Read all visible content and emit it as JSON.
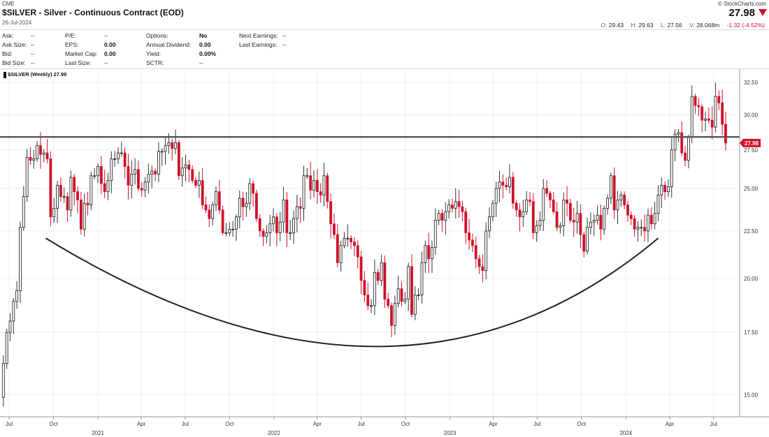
{
  "header": {
    "exchange": "CME",
    "copyright": "© StockCharts.com",
    "title": "$SILVER - Silver - Continuous Contract (EOD)",
    "date": "26-Jul-2024",
    "price": "27.98",
    "open_label": "O:",
    "open": "29.43",
    "high_label": "H:",
    "high": "29.63",
    "low_label": "L:",
    "low": "27.56",
    "volume_label": "V:",
    "volume": "28.068m",
    "change": "-1.32 (-4.52%)"
  },
  "quote": {
    "ask_label": "Ask:",
    "ask": "--",
    "ask_size_label": "Ask Size:",
    "ask_size": "--",
    "bid_label": "Bid:",
    "bid": "--",
    "bid_size_label": "Bid Size:",
    "bid_size": "--",
    "pe_label": "P/E:",
    "pe": "--",
    "eps_label": "EPS:",
    "eps": "0.00",
    "market_cap_label": "Market Cap:",
    "market_cap": "0.00",
    "last_size_label": "Last Size:",
    "last_size": "--",
    "options_label": "Options:",
    "options": "No",
    "annual_dividend_label": "Annual Dividend:",
    "annual_dividend": "0.00",
    "yield_label": "Yield:",
    "yield": "0.00%",
    "sctr_label": "SCTR:",
    "sctr": "--",
    "next_earnings_label": "Next Earnings:",
    "next_earnings": "--",
    "last_earnings_label": "Last Earnings:",
    "last_earnings": "--"
  },
  "colors": {
    "up": "#ffffff",
    "up_border": "#111111",
    "down": "#d0112b",
    "wick": "#444444",
    "resistance": "#555555",
    "arc": "#222222",
    "price_tag": "#d0112b",
    "grid": "#eeeeee"
  },
  "chart_data": {
    "type": "candlestick",
    "legend": "$SILVER (Weekly) 27.98",
    "last_price": "27.98",
    "y_scale": "log",
    "ylim": [
      14.2,
      33.6
    ],
    "yticks": [
      15.0,
      17.5,
      20.0,
      22.5,
      25.0,
      27.5,
      30.0,
      32.5
    ],
    "ytick_labels": [
      "15.00",
      "17.50",
      "20.00",
      "22.50",
      "25.00",
      "27.50",
      "30.00",
      "32.50"
    ],
    "xlim": [
      "2020-06-12",
      "2024-08-24"
    ],
    "xticks": [
      {
        "date": "2020-07-01",
        "label": "Jul",
        "year": ""
      },
      {
        "date": "2020-10-01",
        "label": "Oct",
        "year": ""
      },
      {
        "date": "2021-01-01",
        "label": "",
        "year": "2021"
      },
      {
        "date": "2021-04-01",
        "label": "Apr",
        "year": ""
      },
      {
        "date": "2021-07-01",
        "label": "Jul",
        "year": ""
      },
      {
        "date": "2021-10-01",
        "label": "Oct",
        "year": ""
      },
      {
        "date": "2022-01-01",
        "label": "",
        "year": "2022"
      },
      {
        "date": "2022-04-01",
        "label": "Apr",
        "year": ""
      },
      {
        "date": "2022-07-01",
        "label": "Jul",
        "year": ""
      },
      {
        "date": "2022-10-01",
        "label": "Oct",
        "year": ""
      },
      {
        "date": "2023-01-01",
        "label": "",
        "year": "2023"
      },
      {
        "date": "2023-04-01",
        "label": "Apr",
        "year": ""
      },
      {
        "date": "2023-07-01",
        "label": "Jul",
        "year": ""
      },
      {
        "date": "2023-10-01",
        "label": "Oct",
        "year": ""
      },
      {
        "date": "2024-01-01",
        "label": "",
        "year": "2024"
      },
      {
        "date": "2024-04-01",
        "label": "Apr",
        "year": ""
      },
      {
        "date": "2024-07-01",
        "label": "Jul",
        "year": ""
      }
    ],
    "resistance_level": 28.4,
    "cup_arc": {
      "start": [
        "2020-09-15",
        22.1
      ],
      "bottom": [
        "2022-08-01",
        16.9
      ],
      "end": [
        "2024-03-08",
        22.1
      ]
    },
    "weekly_close_path": [
      [
        "2020-06-12",
        14.9
      ],
      [
        "2020-06-19",
        16.2
      ],
      [
        "2020-06-26",
        17.5
      ],
      [
        "2020-07-03",
        18.0
      ],
      [
        "2020-07-10",
        18.9
      ],
      [
        "2020-07-17",
        19.4
      ],
      [
        "2020-07-24",
        22.7
      ],
      [
        "2020-07-31",
        24.5
      ],
      [
        "2020-08-07",
        27.0
      ],
      [
        "2020-08-14",
        26.8
      ],
      [
        "2020-08-21",
        26.9
      ],
      [
        "2020-08-28",
        27.8
      ],
      [
        "2020-09-04",
        27.2
      ],
      [
        "2020-09-11",
        27.3
      ],
      [
        "2020-09-18",
        26.9
      ],
      [
        "2020-09-25",
        23.3
      ],
      [
        "2020-10-02",
        23.8
      ],
      [
        "2020-10-09",
        25.2
      ],
      [
        "2020-10-16",
        24.5
      ],
      [
        "2020-10-23",
        24.5
      ],
      [
        "2020-10-30",
        23.7
      ],
      [
        "2020-11-06",
        25.7
      ],
      [
        "2020-11-13",
        24.8
      ],
      [
        "2020-11-20",
        24.3
      ],
      [
        "2020-11-27",
        22.6
      ],
      [
        "2020-12-04",
        24.1
      ],
      [
        "2020-12-11",
        24.0
      ],
      [
        "2020-12-18",
        25.8
      ],
      [
        "2020-12-25",
        25.8
      ],
      [
        "2021-01-01",
        26.4
      ],
      [
        "2021-01-08",
        25.3
      ],
      [
        "2021-01-15",
        24.8
      ],
      [
        "2021-01-22",
        25.5
      ],
      [
        "2021-01-29",
        26.9
      ],
      [
        "2021-02-05",
        26.9
      ],
      [
        "2021-02-12",
        27.3
      ],
      [
        "2021-02-19",
        27.3
      ],
      [
        "2021-02-26",
        26.4
      ],
      [
        "2021-03-05",
        25.2
      ],
      [
        "2021-03-12",
        25.9
      ],
      [
        "2021-03-19",
        26.2
      ],
      [
        "2021-03-26",
        25.0
      ],
      [
        "2021-04-02",
        24.9
      ],
      [
        "2021-04-09",
        25.4
      ],
      [
        "2021-04-16",
        25.9
      ],
      [
        "2021-04-23",
        26.1
      ],
      [
        "2021-04-30",
        25.9
      ],
      [
        "2021-05-07",
        27.4
      ],
      [
        "2021-05-14",
        27.4
      ],
      [
        "2021-05-21",
        27.8
      ],
      [
        "2021-05-28",
        28.0
      ],
      [
        "2021-06-04",
        27.6
      ],
      [
        "2021-06-11",
        28.0
      ],
      [
        "2021-06-18",
        25.8
      ],
      [
        "2021-06-25",
        26.3
      ],
      [
        "2021-07-02",
        26.5
      ],
      [
        "2021-07-09",
        26.2
      ],
      [
        "2021-07-16",
        25.5
      ],
      [
        "2021-07-23",
        25.2
      ],
      [
        "2021-07-30",
        25.5
      ],
      [
        "2021-08-06",
        24.0
      ],
      [
        "2021-08-13",
        23.7
      ],
      [
        "2021-08-20",
        23.2
      ],
      [
        "2021-08-27",
        24.0
      ],
      [
        "2021-09-03",
        24.8
      ],
      [
        "2021-09-10",
        23.7
      ],
      [
        "2021-09-17",
        22.4
      ],
      [
        "2021-09-24",
        22.4
      ],
      [
        "2021-10-01",
        22.6
      ],
      [
        "2021-10-08",
        22.6
      ],
      [
        "2021-10-15",
        23.3
      ],
      [
        "2021-10-22",
        24.4
      ],
      [
        "2021-10-29",
        23.9
      ],
      [
        "2021-11-05",
        24.1
      ],
      [
        "2021-11-12",
        25.3
      ],
      [
        "2021-11-19",
        24.7
      ],
      [
        "2021-11-26",
        23.2
      ],
      [
        "2021-12-03",
        22.5
      ],
      [
        "2021-12-10",
        22.2
      ],
      [
        "2021-12-17",
        22.4
      ],
      [
        "2021-12-24",
        22.9
      ],
      [
        "2021-12-31",
        23.3
      ],
      [
        "2022-01-07",
        22.4
      ],
      [
        "2022-01-14",
        23.0
      ],
      [
        "2022-01-21",
        24.3
      ],
      [
        "2022-01-28",
        22.4
      ],
      [
        "2022-02-04",
        22.4
      ],
      [
        "2022-02-11",
        23.2
      ],
      [
        "2022-02-18",
        23.9
      ],
      [
        "2022-02-25",
        23.8
      ],
      [
        "2022-03-04",
        25.8
      ],
      [
        "2022-03-11",
        25.8
      ],
      [
        "2022-03-18",
        24.9
      ],
      [
        "2022-03-25",
        25.5
      ],
      [
        "2022-04-01",
        24.8
      ],
      [
        "2022-04-08",
        24.6
      ],
      [
        "2022-04-15",
        25.8
      ],
      [
        "2022-04-22",
        24.2
      ],
      [
        "2022-04-29",
        22.9
      ],
      [
        "2022-05-06",
        22.3
      ],
      [
        "2022-05-13",
        20.8
      ],
      [
        "2022-05-20",
        21.7
      ],
      [
        "2022-05-27",
        22.1
      ],
      [
        "2022-06-03",
        22.1
      ],
      [
        "2022-06-10",
        21.9
      ],
      [
        "2022-06-17",
        21.7
      ],
      [
        "2022-06-24",
        21.1
      ],
      [
        "2022-07-01",
        19.9
      ],
      [
        "2022-07-08",
        19.2
      ],
      [
        "2022-07-15",
        18.7
      ],
      [
        "2022-07-22",
        18.7
      ],
      [
        "2022-07-29",
        20.3
      ],
      [
        "2022-08-05",
        19.9
      ],
      [
        "2022-08-12",
        20.8
      ],
      [
        "2022-08-19",
        19.0
      ],
      [
        "2022-08-26",
        18.7
      ],
      [
        "2022-09-02",
        17.8
      ],
      [
        "2022-09-09",
        18.8
      ],
      [
        "2022-09-16",
        19.5
      ],
      [
        "2022-09-23",
        18.9
      ],
      [
        "2022-09-30",
        19.0
      ],
      [
        "2022-10-07",
        20.6
      ],
      [
        "2022-10-14",
        18.3
      ],
      [
        "2022-10-21",
        19.2
      ],
      [
        "2022-10-28",
        19.2
      ],
      [
        "2022-11-04",
        20.8
      ],
      [
        "2022-11-11",
        21.7
      ],
      [
        "2022-11-18",
        21.0
      ],
      [
        "2022-11-25",
        21.6
      ],
      [
        "2022-12-02",
        23.1
      ],
      [
        "2022-12-09",
        23.5
      ],
      [
        "2022-12-16",
        23.1
      ],
      [
        "2022-12-23",
        23.6
      ],
      [
        "2022-12-30",
        24.0
      ],
      [
        "2023-01-06",
        23.8
      ],
      [
        "2023-01-13",
        24.2
      ],
      [
        "2023-01-20",
        23.9
      ],
      [
        "2023-01-27",
        23.6
      ],
      [
        "2023-02-03",
        22.4
      ],
      [
        "2023-02-10",
        22.0
      ],
      [
        "2023-02-17",
        21.7
      ],
      [
        "2023-02-24",
        21.0
      ],
      [
        "2023-03-03",
        20.6
      ],
      [
        "2023-03-10",
        20.4
      ],
      [
        "2023-03-17",
        22.5
      ],
      [
        "2023-03-24",
        23.3
      ],
      [
        "2023-03-31",
        24.1
      ],
      [
        "2023-04-07",
        25.0
      ],
      [
        "2023-04-14",
        25.4
      ],
      [
        "2023-04-21",
        25.2
      ],
      [
        "2023-04-28",
        25.1
      ],
      [
        "2023-05-05",
        25.7
      ],
      [
        "2023-05-12",
        24.1
      ],
      [
        "2023-05-19",
        23.7
      ],
      [
        "2023-05-26",
        23.3
      ],
      [
        "2023-06-02",
        23.6
      ],
      [
        "2023-06-09",
        24.3
      ],
      [
        "2023-06-16",
        24.2
      ],
      [
        "2023-06-23",
        22.4
      ],
      [
        "2023-06-30",
        22.8
      ],
      [
        "2023-07-07",
        23.1
      ],
      [
        "2023-07-14",
        25.0
      ],
      [
        "2023-07-21",
        24.7
      ],
      [
        "2023-07-28",
        24.3
      ],
      [
        "2023-08-04",
        23.6
      ],
      [
        "2023-08-11",
        22.7
      ],
      [
        "2023-08-18",
        22.8
      ],
      [
        "2023-08-25",
        24.3
      ],
      [
        "2023-09-01",
        24.1
      ],
      [
        "2023-09-08",
        23.1
      ],
      [
        "2023-09-15",
        23.0
      ],
      [
        "2023-09-22",
        23.5
      ],
      [
        "2023-09-29",
        22.3
      ],
      [
        "2023-10-06",
        21.4
      ],
      [
        "2023-10-13",
        22.7
      ],
      [
        "2023-10-20",
        23.0
      ],
      [
        "2023-10-27",
        23.1
      ],
      [
        "2023-11-03",
        23.4
      ],
      [
        "2023-11-10",
        22.6
      ],
      [
        "2023-11-17",
        23.8
      ],
      [
        "2023-11-24",
        24.4
      ],
      [
        "2023-12-01",
        25.8
      ],
      [
        "2023-12-08",
        23.7
      ],
      [
        "2023-12-15",
        24.3
      ],
      [
        "2023-12-22",
        24.6
      ],
      [
        "2023-12-29",
        24.0
      ],
      [
        "2024-01-05",
        23.4
      ],
      [
        "2024-01-12",
        23.2
      ],
      [
        "2024-01-19",
        22.6
      ],
      [
        "2024-01-26",
        22.7
      ],
      [
        "2024-02-02",
        22.7
      ],
      [
        "2024-02-09",
        22.5
      ],
      [
        "2024-02-16",
        23.4
      ],
      [
        "2024-02-23",
        22.9
      ],
      [
        "2024-03-01",
        23.5
      ],
      [
        "2024-03-08",
        24.6
      ],
      [
        "2024-03-15",
        25.2
      ],
      [
        "2024-03-22",
        24.8
      ],
      [
        "2024-03-29",
        25.1
      ],
      [
        "2024-04-05",
        27.5
      ],
      [
        "2024-04-12",
        28.6
      ],
      [
        "2024-04-19",
        28.7
      ],
      [
        "2024-04-26",
        27.3
      ],
      [
        "2024-05-03",
        26.8
      ],
      [
        "2024-05-10",
        28.4
      ],
      [
        "2024-05-17",
        31.4
      ],
      [
        "2024-05-24",
        30.7
      ],
      [
        "2024-05-31",
        30.6
      ],
      [
        "2024-06-07",
        29.6
      ],
      [
        "2024-06-14",
        29.7
      ],
      [
        "2024-06-21",
        29.6
      ],
      [
        "2024-06-28",
        29.1
      ],
      [
        "2024-07-05",
        31.4
      ],
      [
        "2024-07-12",
        30.9
      ],
      [
        "2024-07-19",
        29.3
      ],
      [
        "2024-07-26",
        27.98
      ]
    ]
  }
}
